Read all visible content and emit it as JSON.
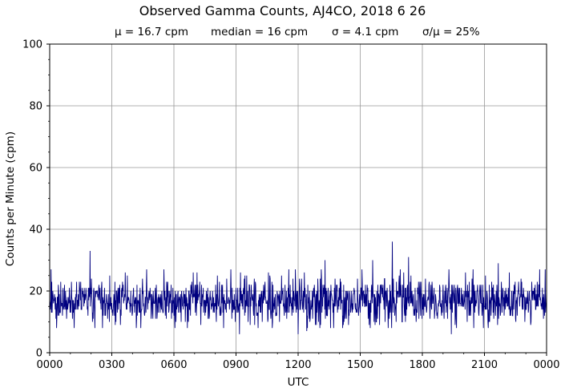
{
  "chart_data": {
    "type": "line",
    "title": "Observed Gamma Counts, AJ4CO, 2018 6 26",
    "subtitle": {
      "mean": "μ = 16.7 cpm",
      "median": "median = 16 cpm",
      "sigma": "σ = 4.1 cpm",
      "ratio": "σ/μ = 25%"
    },
    "xlabel": "UTC",
    "ylabel": "Counts per Minute (cpm)",
    "ylim": [
      0,
      100
    ],
    "xlim_hours": [
      0,
      24
    ],
    "xticks": [
      "0000",
      "0300",
      "0600",
      "0900",
      "1200",
      "1500",
      "1800",
      "2100",
      "0000"
    ],
    "yticks": [
      "0",
      "20",
      "40",
      "60",
      "80",
      "100"
    ],
    "grid": true,
    "line_color": "#00007f",
    "series": [
      {
        "sample_interval_minutes": 1,
        "mean_cpm": 16.7,
        "sigma_cpm": 4.1,
        "peaks": [
          {
            "time_utc": "0157",
            "cpm": 33
          },
          {
            "time_utc": "0845",
            "cpm": 27
          },
          {
            "time_utc": "1152",
            "cpm": 27
          },
          {
            "time_utc": "1318",
            "cpm": 30
          },
          {
            "time_utc": "1536",
            "cpm": 30
          },
          {
            "time_utc": "1633",
            "cpm": 36
          },
          {
            "time_utc": "1720",
            "cpm": 31
          },
          {
            "time_utc": "2140",
            "cpm": 29
          }
        ],
        "troughs": [
          {
            "time_utc": "0020",
            "cpm": 8
          },
          {
            "time_utc": "0910",
            "cpm": 6
          },
          {
            "time_utc": "1200",
            "cpm": 6
          },
          {
            "time_utc": "1225",
            "cpm": 7
          },
          {
            "time_utc": "1924",
            "cpm": 6
          }
        ]
      }
    ]
  }
}
